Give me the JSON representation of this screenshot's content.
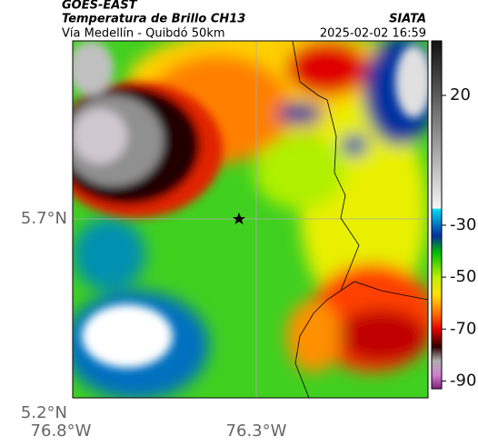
{
  "header": {
    "title": "GOES-EAST",
    "subtitle": "Temperatura de Brillo CH13",
    "route": "Vía Medellín - Quibdó 50km",
    "source": "SIATA",
    "timestamp": "2025-02-02 16:59"
  },
  "map": {
    "lat_labels": [
      "5.7°N",
      "5.2°N"
    ],
    "lon_labels": [
      "76.8°W",
      "76.3°W"
    ]
  },
  "colorbar": {
    "lim": [
      41,
      -93
    ],
    "ticks": [
      20,
      -30,
      -50,
      -70,
      -90
    ]
  }
}
